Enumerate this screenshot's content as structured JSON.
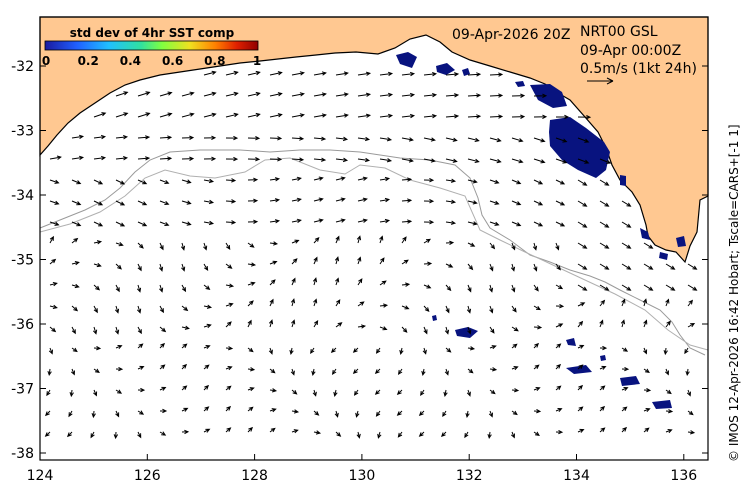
{
  "title_date": "09-Apr-2026 20Z",
  "product": "NRT00 GSL",
  "analysis_time": "09-Apr 00:00Z",
  "vector_scale_label": "0.5m/s (1kt 24h)",
  "colorbar": {
    "title": "std dev of 4hr SST comp",
    "ticks": [
      "0",
      "0.2",
      "0.4",
      "0.6",
      "0.8",
      "1"
    ],
    "colors": [
      "#1a1aa0",
      "#2060ff",
      "#20c0ff",
      "#30e0a0",
      "#80ff40",
      "#f0e020",
      "#ff8000",
      "#e02000",
      "#900000"
    ]
  },
  "x_ticks": [
    "124",
    "126",
    "128",
    "130",
    "132",
    "134",
    "136"
  ],
  "y_ticks": [
    "-32",
    "-33",
    "-34",
    "-35",
    "-36",
    "-37",
    "-38"
  ],
  "side_credit": "© IMOS 12-Apr-2026 16:42 Hobart; Tscale=CARS+[-1 1]",
  "colors": {
    "land": "#ffc891",
    "sea": "#ffffff",
    "sst_patch": "#08137f",
    "contour": "#9a9a9a"
  }
}
